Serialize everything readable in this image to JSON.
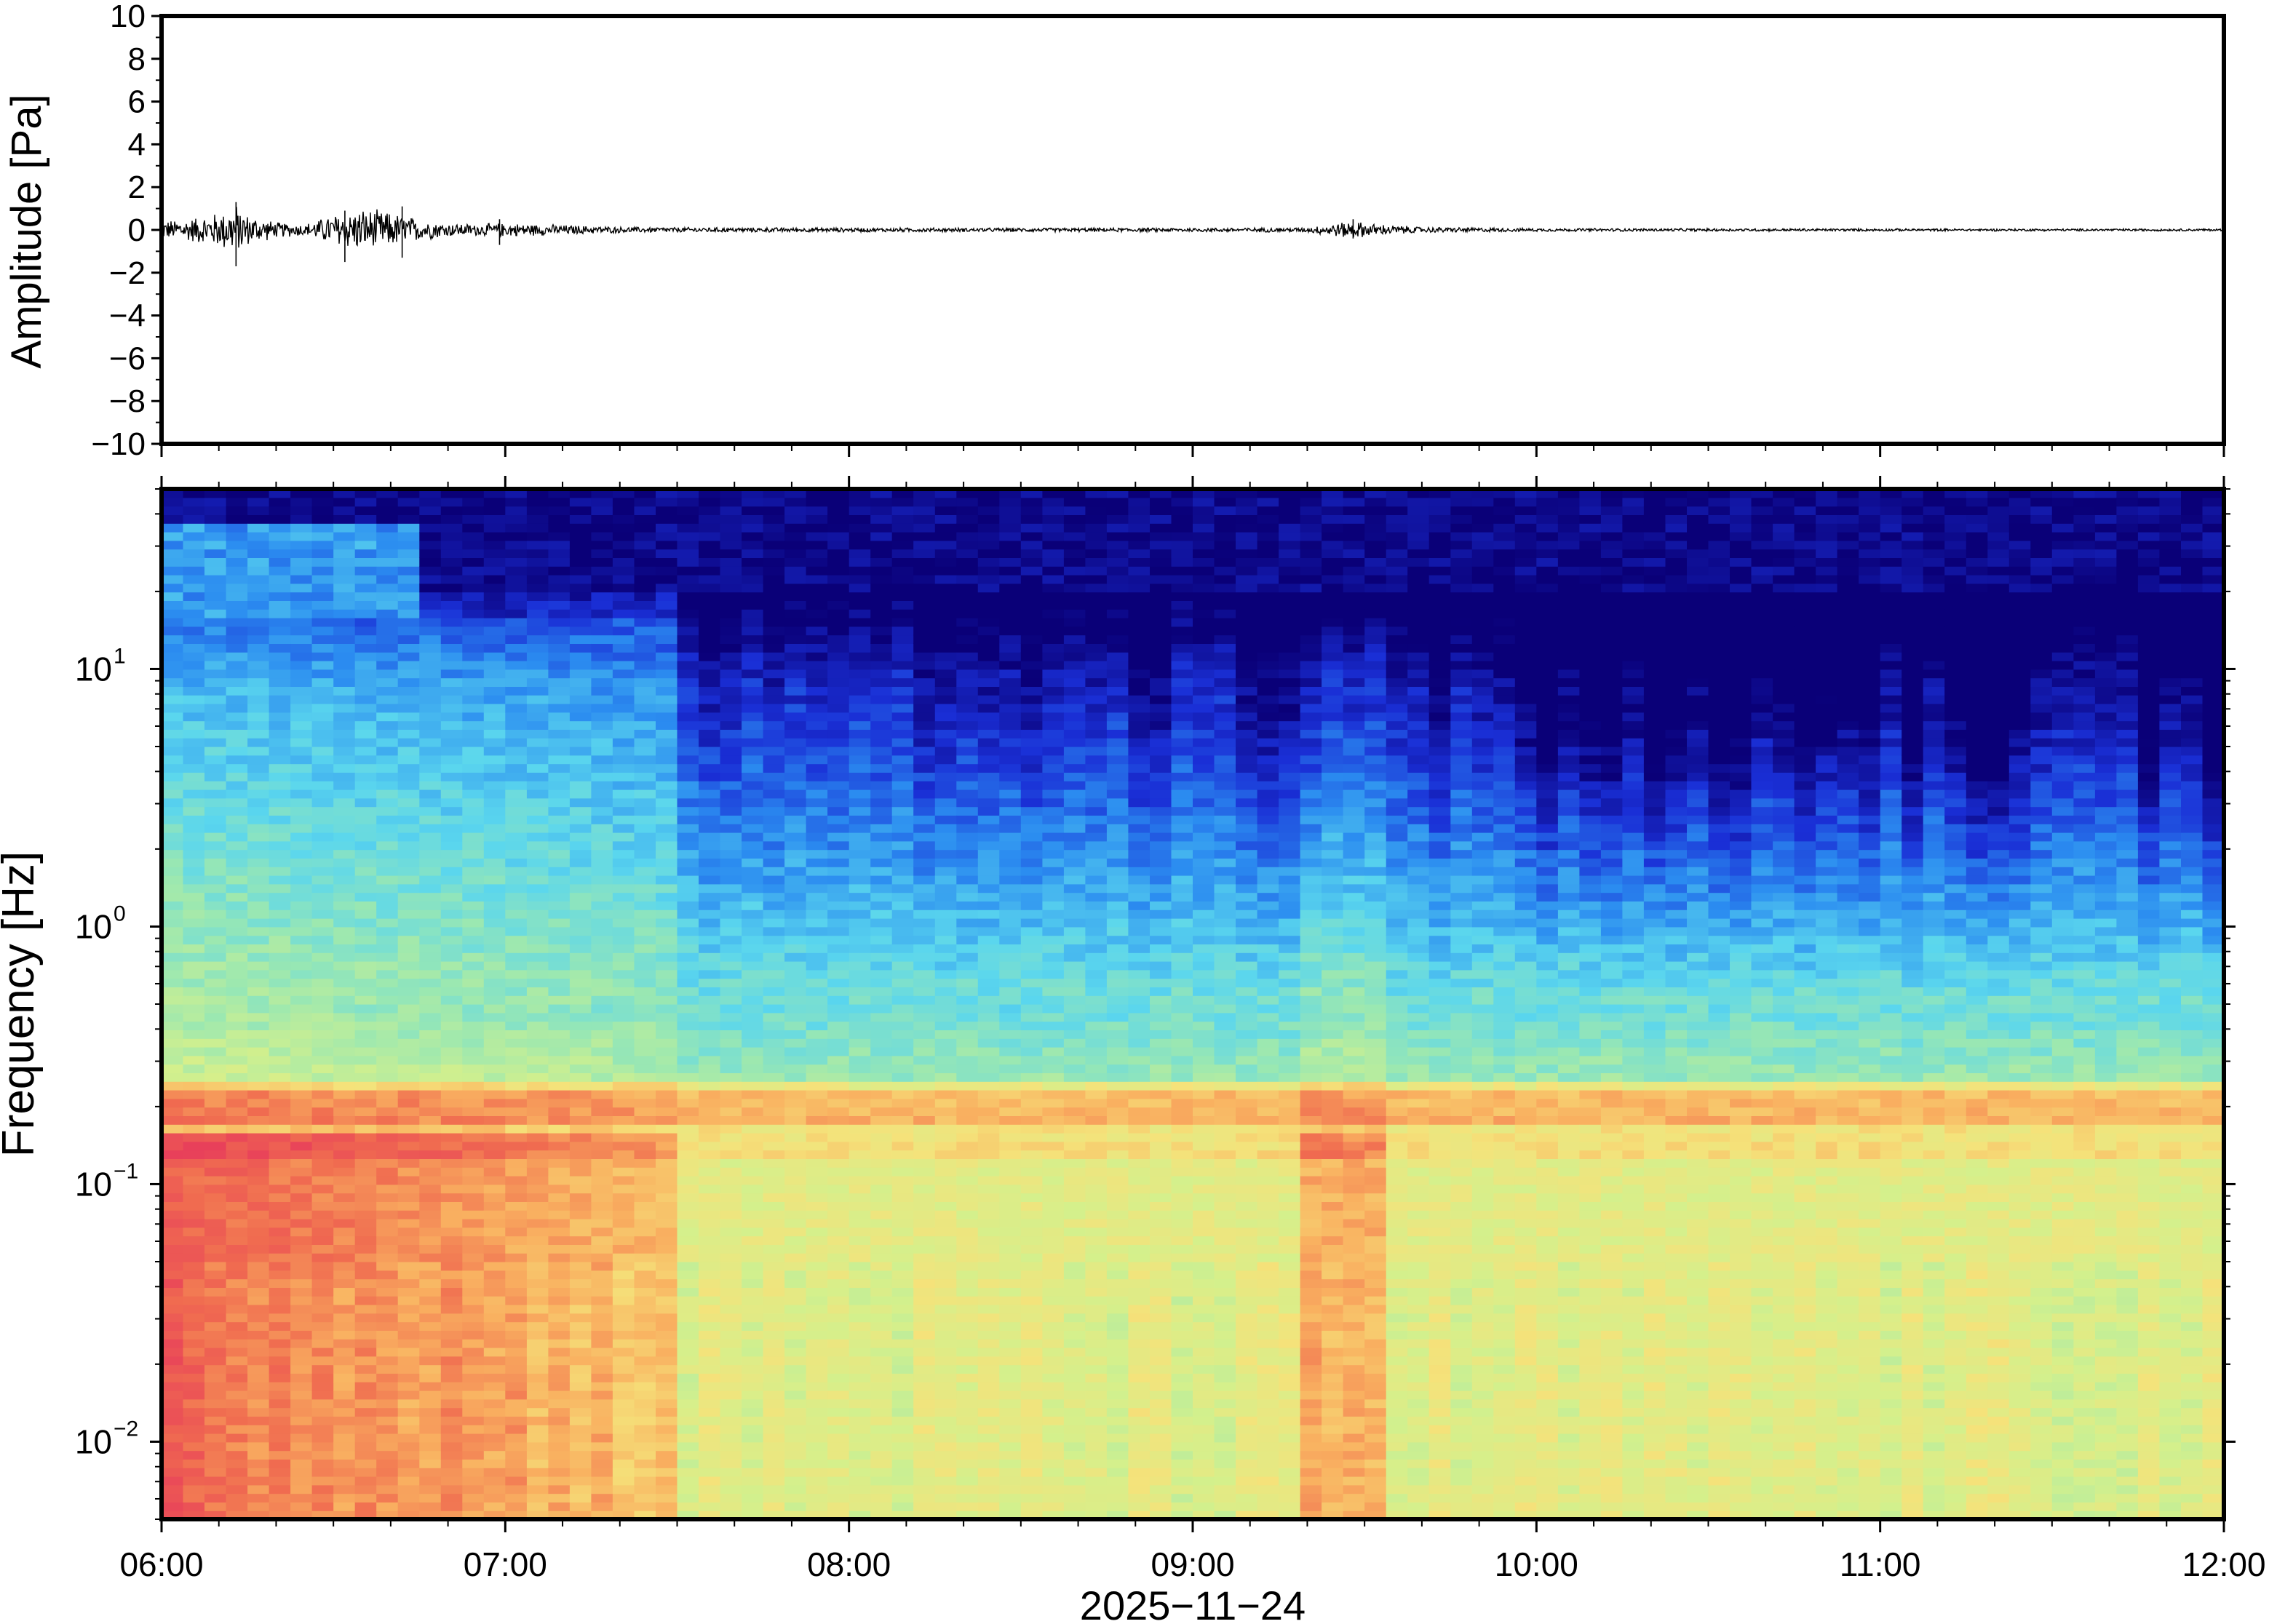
{
  "chart_data": [
    {
      "type": "line",
      "panel": "waveform",
      "ylabel": "Amplitude [Pa]",
      "ylim": [
        -10,
        10
      ],
      "yticks": [
        "10",
        "8",
        "6",
        "4",
        "2",
        "0",
        "−2",
        "−4",
        "−6",
        "−8",
        "−10"
      ],
      "x_range": [
        "06:00",
        "12:00"
      ],
      "series": [
        {
          "x_minutes_after_0600": [
            0,
            5,
            10,
            13,
            15,
            20,
            25,
            30,
            35,
            40,
            45,
            50,
            55,
            60,
            70,
            80,
            100,
            140,
            180,
            200,
            205,
            208,
            212,
            220,
            240,
            280,
            320,
            360
          ],
          "envelope": [
            0.45,
            0.6,
            0.9,
            1.3,
            0.8,
            0.4,
            0.3,
            0.8,
            1.1,
            0.9,
            0.55,
            0.35,
            0.3,
            0.35,
            0.25,
            0.15,
            0.12,
            0.1,
            0.1,
            0.12,
            0.35,
            0.45,
            0.3,
            0.15,
            0.08,
            0.07,
            0.06,
            0.06
          ],
          "peaks": [
            {
              "x_minutes_after_0600": 13,
              "max": 1.3,
              "min": -1.7
            },
            {
              "x_minutes_after_0600": 32,
              "max": 0.9,
              "min": -1.5
            },
            {
              "x_minutes_after_0600": 42,
              "max": 1.1,
              "min": -1.3
            },
            {
              "x_minutes_after_0600": 59,
              "max": 0.5,
              "min": -0.7
            },
            {
              "x_minutes_after_0600": 208,
              "max": 0.5,
              "min": -0.4
            }
          ]
        }
      ]
    },
    {
      "type": "heatmap",
      "panel": "spectrogram",
      "ylabel": "Frequency [Hz]",
      "yscale": "log",
      "ylim": [
        0.005,
        50
      ],
      "yticks": [
        {
          "base": "10",
          "exp": "−2",
          "value": 0.01
        },
        {
          "base": "10",
          "exp": "−1",
          "value": 0.1
        },
        {
          "base": "10",
          "exp": "0",
          "value": 1
        },
        {
          "base": "10",
          "exp": "1",
          "value": 10
        }
      ],
      "colormap": [
        "#0a0078",
        "#1a2fd6",
        "#2b8cf0",
        "#5ad6ee",
        "#9ce8b0",
        "#d4f08c",
        "#f5e27a",
        "#f9b060",
        "#f06c50",
        "#e8405a"
      ],
      "x_range": [
        "06:00",
        "12:00"
      ],
      "time_bins_minutes": 96,
      "dominant_band_hz": 0.2,
      "high_energy_windows_minutes_after_0600": [
        [
          0,
          90
        ],
        [
          197,
          215
        ]
      ]
    }
  ],
  "xaxis": {
    "ticks": [
      "06:00",
      "07:00",
      "08:00",
      "09:00",
      "10:00",
      "11:00",
      "12:00"
    ],
    "label": "2025−11−24"
  }
}
